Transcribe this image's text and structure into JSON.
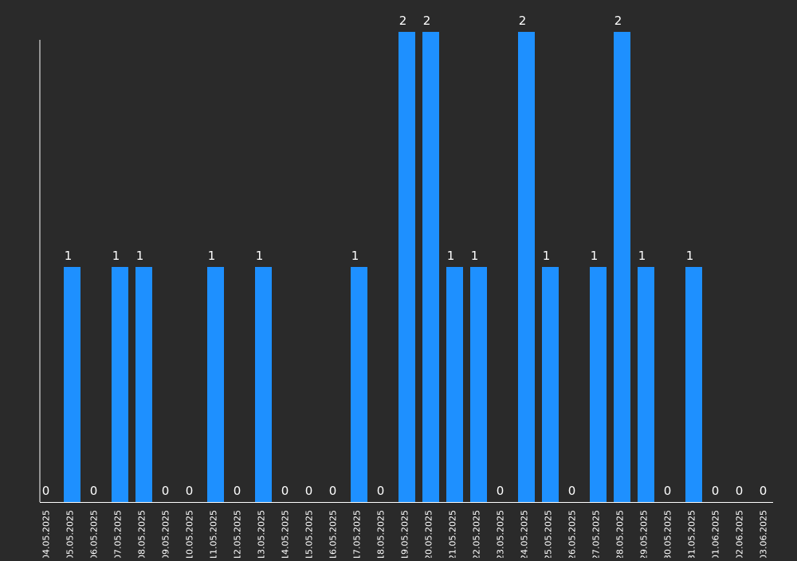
{
  "chart_data": {
    "type": "bar",
    "title": "",
    "xlabel": "",
    "ylabel": "",
    "ylim": [
      0,
      2
    ],
    "grid": false,
    "legend": "none",
    "categories": [
      "04.05.2025",
      "05.05.2025",
      "06.05.2025",
      "07.05.2025",
      "08.05.2025",
      "09.05.2025",
      "10.05.2025",
      "11.05.2025",
      "12.05.2025",
      "13.05.2025",
      "14.05.2025",
      "15.05.2025",
      "16.05.2025",
      "17.05.2025",
      "18.05.2025",
      "19.05.2025",
      "20.05.2025",
      "21.05.2025",
      "22.05.2025",
      "23.05.2025",
      "24.05.2025",
      "25.05.2025",
      "26.05.2025",
      "27.05.2025",
      "28.05.2025",
      "29.05.2025",
      "30.05.2025",
      "31.05.2025",
      "01.06.2025",
      "02.06.2025",
      "03.06.2025"
    ],
    "values": [
      0,
      1,
      0,
      1,
      1,
      0,
      0,
      1,
      0,
      1,
      0,
      0,
      0,
      1,
      0,
      2,
      2,
      1,
      1,
      0,
      2,
      1,
      0,
      1,
      2,
      1,
      0,
      1,
      0,
      0,
      0
    ],
    "colors": {
      "bar": "#1e90ff",
      "axis": "#ffffff",
      "label": "#ffffff",
      "background": "#2a2a2a"
    }
  }
}
